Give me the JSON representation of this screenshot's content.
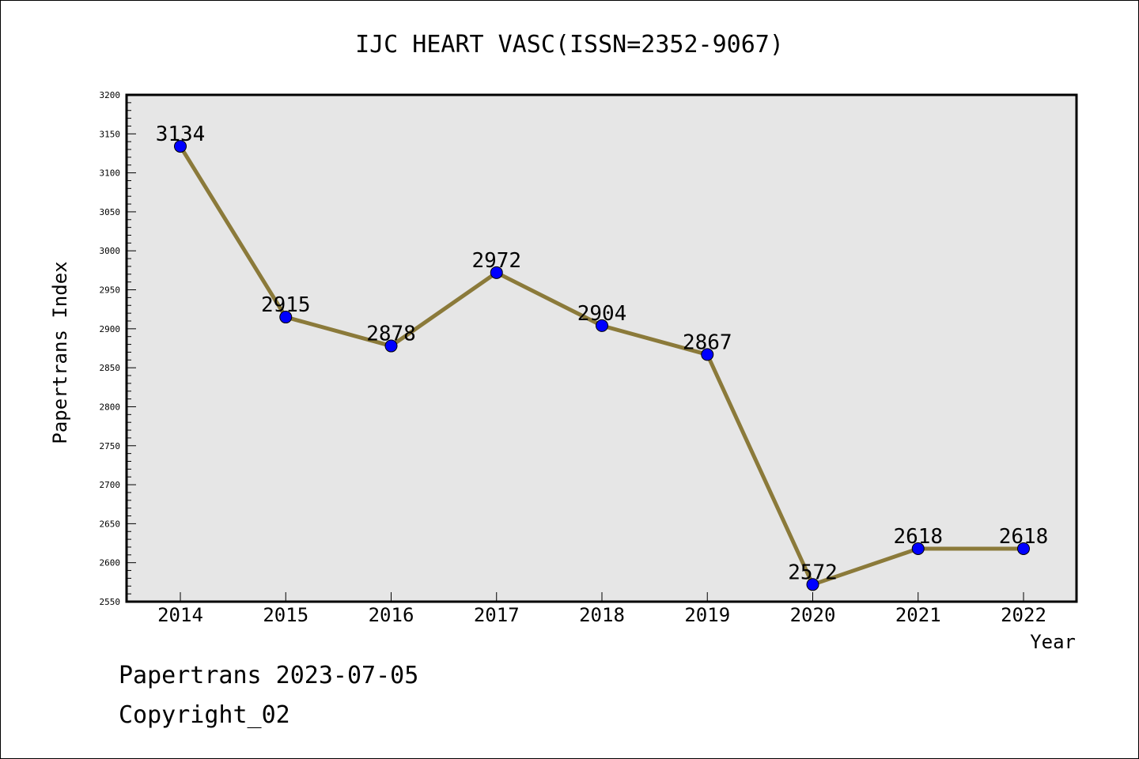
{
  "chart_data": {
    "type": "line",
    "title": "IJC HEART VASC(ISSN=2352-9067)",
    "xlabel": "Year",
    "ylabel": "Papertrans Index",
    "categories": [
      "2014",
      "2015",
      "2016",
      "2017",
      "2018",
      "2019",
      "2020",
      "2021",
      "2022"
    ],
    "values": [
      3134,
      2915,
      2878,
      2972,
      2904,
      2867,
      2572,
      2618,
      2618
    ],
    "data_labels": [
      "3134",
      "2915",
      "2878",
      "2972",
      "2904",
      "2867",
      "2572",
      "2618",
      "2618"
    ],
    "ylim": [
      2550,
      3200
    ],
    "yticks": [
      2550,
      2600,
      2650,
      2700,
      2750,
      2800,
      2850,
      2900,
      2950,
      3000,
      3050,
      3100,
      3150,
      3200
    ],
    "ytick_labels": [
      "2550",
      "2600",
      "2650",
      "2700",
      "2750",
      "2800",
      "2850",
      "2900",
      "2950",
      "3000",
      "3050",
      "3100",
      "3150",
      "3200"
    ],
    "grid": false,
    "colors": {
      "line": "#8b7a3a",
      "marker": "#0000ff",
      "plot_bg": "#e6e6e6"
    }
  },
  "footer": {
    "date_text": "Papertrans 2023-07-05",
    "copyright_text": "Copyright_02"
  }
}
